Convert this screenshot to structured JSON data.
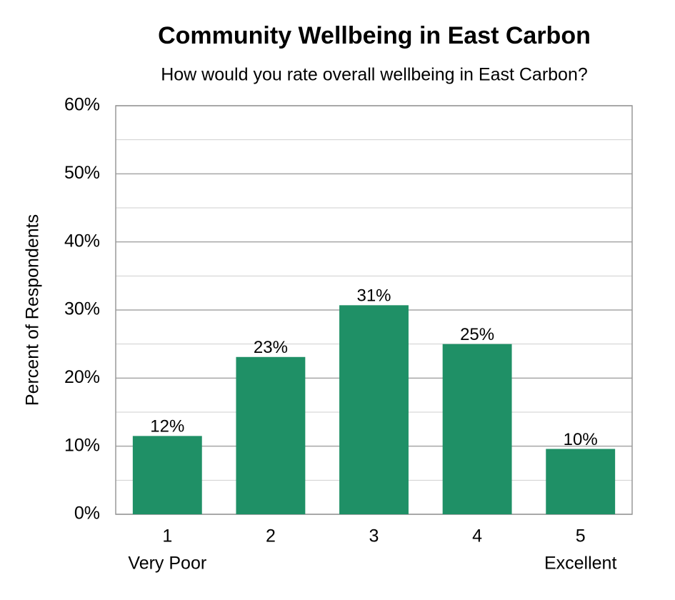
{
  "chart_data": {
    "type": "bar",
    "title": "Community Wellbeing in East Carbon",
    "subtitle": "How would you rate overall wellbeing in East Carbon?",
    "y_label": "Percent of Respondents",
    "categories": [
      "1",
      "2",
      "3",
      "4",
      "5"
    ],
    "category_sublabels": [
      "Very Poor",
      null,
      null,
      null,
      "Excellent"
    ],
    "values": [
      11.5,
      23.1,
      30.7,
      25,
      9.6
    ],
    "value_labels": [
      "12%",
      "23%",
      "31%",
      "25%",
      "10%"
    ],
    "color": "#1f9066",
    "ylim": [
      0,
      60
    ],
    "yticks": [
      {
        "value": 0,
        "label": "0%"
      },
      {
        "value": 10,
        "label": "10%"
      },
      {
        "value": 20,
        "label": "20%"
      },
      {
        "value": 30,
        "label": "30%"
      },
      {
        "value": 40,
        "label": "40%"
      },
      {
        "value": 50,
        "label": "50%"
      },
      {
        "value": 60,
        "label": "60%"
      }
    ],
    "minor_yticks": [
      5,
      15,
      25,
      35,
      45,
      55
    ],
    "grid": true
  }
}
